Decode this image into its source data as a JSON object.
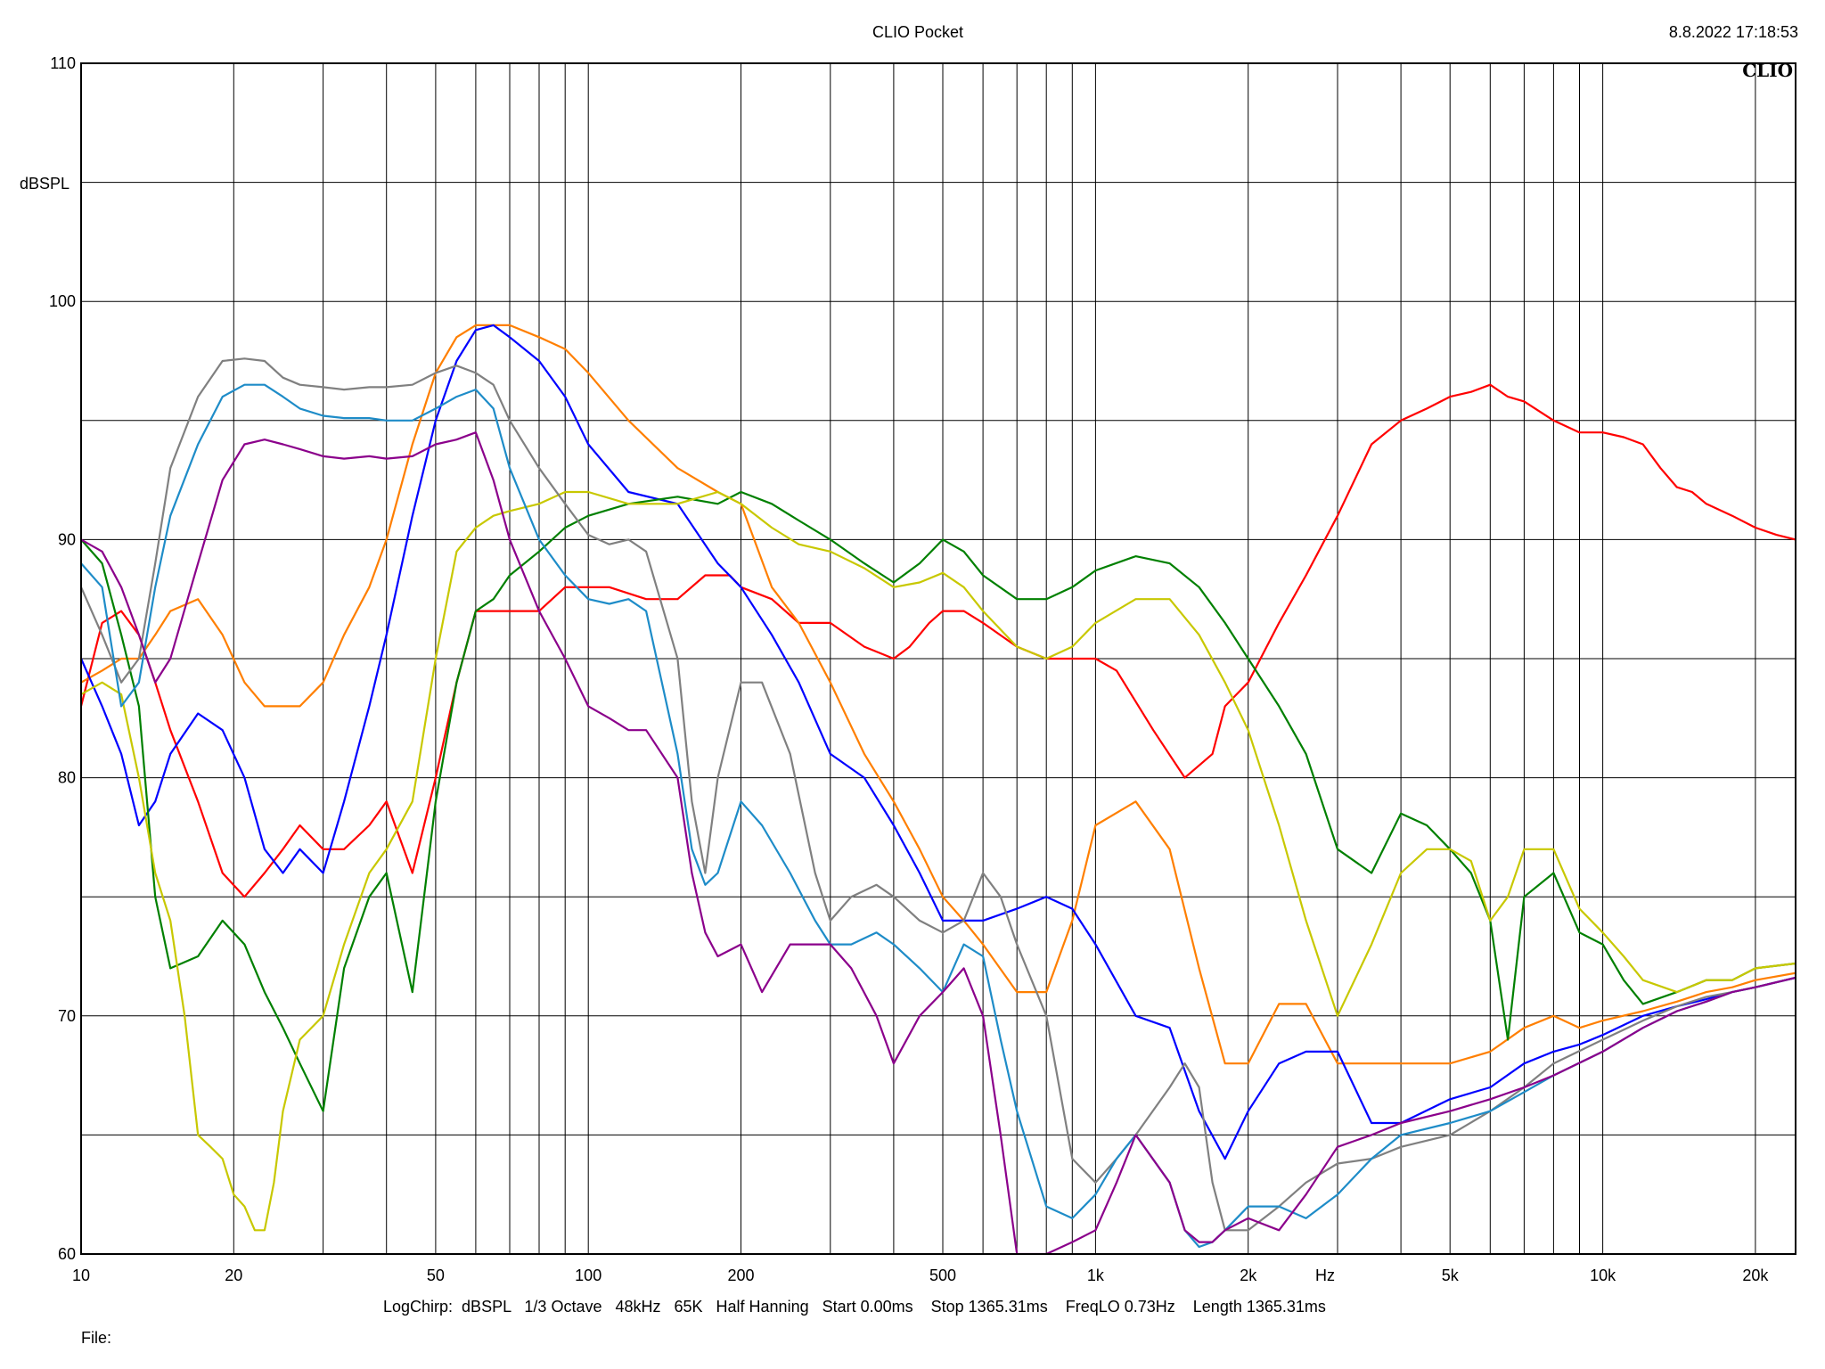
{
  "header": {
    "title": "CLIO Pocket",
    "timestamp": "8.8.2022 17:18:53",
    "brand": "CLIO"
  },
  "footer": {
    "settings": "LogChirp:  dBSPL   1/3 Octave   48kHz   65K   Half Hanning   Start 0.00ms    Stop 1365.31ms    FreqLO 0.73Hz    Length 1365.31ms",
    "file_label": "File:"
  },
  "chart_data": {
    "type": "line",
    "title": "",
    "xlabel": "Hz",
    "ylabel": "dBSPL",
    "xscale": "log",
    "xlim": [
      10,
      24000
    ],
    "ylim": [
      60,
      110
    ],
    "grid": true,
    "legend": "none",
    "x_ticks": [
      {
        "v": 10,
        "label": "10"
      },
      {
        "v": 20,
        "label": "20"
      },
      {
        "v": 50,
        "label": "50"
      },
      {
        "v": 100,
        "label": "100"
      },
      {
        "v": 200,
        "label": "200"
      },
      {
        "v": 500,
        "label": "500"
      },
      {
        "v": 1000,
        "label": "1k"
      },
      {
        "v": 2000,
        "label": "2k"
      },
      {
        "v": 5000,
        "label": "5k"
      },
      {
        "v": 10000,
        "label": "10k"
      },
      {
        "v": 20000,
        "label": "20k"
      }
    ],
    "y_ticks": [
      {
        "v": 60,
        "label": "60"
      },
      {
        "v": 70,
        "label": "70"
      },
      {
        "v": 80,
        "label": "80"
      },
      {
        "v": 90,
        "label": "90"
      },
      {
        "v": 100,
        "label": "100"
      },
      {
        "v": 110,
        "label": "110"
      }
    ],
    "series": [
      {
        "color": "#ff0000",
        "x": [
          10,
          11,
          12,
          13,
          14,
          15,
          17,
          19,
          21,
          23,
          25,
          27,
          30,
          33,
          37,
          40,
          45,
          50,
          55,
          60,
          65,
          70,
          80,
          90,
          100,
          110,
          130,
          150,
          170,
          190,
          200,
          230,
          260,
          300,
          350,
          400,
          430,
          470,
          500,
          550,
          600,
          700,
          800,
          900,
          1000,
          1100,
          1300,
          1500,
          1700,
          1800,
          2000,
          2300,
          2600,
          3000,
          3500,
          4000,
          4500,
          5000,
          5500,
          6000,
          6500,
          7000,
          8000,
          9000,
          10000,
          11000,
          12000,
          13000,
          14000,
          15000,
          16000,
          18000,
          20000,
          22000,
          24000
        ],
        "y": [
          83,
          86.5,
          87,
          86,
          84,
          82,
          79,
          76,
          75,
          76,
          77,
          78,
          77,
          77,
          78,
          79,
          76,
          80,
          84,
          87,
          87,
          87,
          87,
          88,
          88,
          88,
          87.5,
          87.5,
          88.5,
          88.5,
          88,
          87.5,
          86.5,
          86.5,
          85.5,
          85,
          85.5,
          86.5,
          87,
          87,
          86.5,
          85.5,
          85,
          85,
          85,
          84.5,
          82,
          80,
          81,
          83,
          84,
          86.5,
          88.5,
          91,
          94,
          95,
          95.5,
          96,
          96.2,
          96.5,
          96,
          95.8,
          95,
          94.5,
          94.5,
          94.3,
          94,
          93,
          92.2,
          92,
          91.5,
          91,
          90.5,
          90.2,
          90
        ]
      },
      {
        "color": "#ff7f00",
        "x": [
          10,
          11,
          12,
          13,
          14,
          15,
          17,
          19,
          21,
          23,
          25,
          27,
          30,
          33,
          37,
          40,
          45,
          50,
          55,
          60,
          65,
          70,
          80,
          90,
          100,
          120,
          150,
          180,
          200,
          230,
          260,
          300,
          350,
          400,
          450,
          500,
          550,
          600,
          700,
          800,
          900,
          1000,
          1200,
          1400,
          1600,
          1800,
          2000,
          2300,
          2600,
          3000,
          3500,
          4000,
          5000,
          6000,
          7000,
          8000,
          9000,
          10000,
          12000,
          14000,
          16000,
          18000,
          20000,
          24000
        ],
        "y": [
          84,
          84.5,
          85,
          85,
          86,
          87,
          87.5,
          86,
          84,
          83,
          83,
          83,
          84,
          86,
          88,
          90,
          94,
          97,
          98.5,
          99,
          99,
          99,
          98.5,
          98,
          97,
          95,
          93,
          92,
          91.5,
          88,
          86.5,
          84,
          81,
          79,
          77,
          75,
          74,
          73,
          71,
          71,
          74,
          78,
          79,
          77,
          72,
          68,
          68,
          70.5,
          70.5,
          68,
          68,
          68,
          68,
          68.5,
          69.5,
          70,
          69.5,
          69.8,
          70.2,
          70.6,
          71,
          71.2,
          71.5,
          71.8
        ]
      },
      {
        "color": "#0000ff",
        "x": [
          10,
          11,
          12,
          13,
          14,
          15,
          17,
          19,
          21,
          23,
          25,
          27,
          30,
          33,
          37,
          40,
          45,
          50,
          55,
          60,
          65,
          70,
          80,
          90,
          100,
          120,
          150,
          180,
          200,
          230,
          260,
          300,
          350,
          400,
          450,
          500,
          550,
          600,
          700,
          800,
          900,
          1000,
          1200,
          1400,
          1600,
          1800,
          2000,
          2300,
          2600,
          3000,
          3500,
          4000,
          5000,
          6000,
          7000,
          8000,
          9000,
          10000,
          12000,
          14000,
          16000,
          18000,
          20000,
          24000
        ],
        "y": [
          85,
          83,
          81,
          78,
          79,
          81,
          82.7,
          82,
          80,
          77,
          76,
          77,
          76,
          79,
          83,
          86,
          91,
          95,
          97.5,
          98.8,
          99,
          98.5,
          97.5,
          96,
          94,
          92,
          91.5,
          89,
          88,
          86,
          84,
          81,
          80,
          78,
          76,
          74,
          74,
          74,
          74.5,
          75,
          74.5,
          73,
          70,
          69.5,
          66,
          64,
          66,
          68,
          68.5,
          68.5,
          65.5,
          65.5,
          66.5,
          67,
          68,
          68.5,
          68.8,
          69.2,
          70,
          70.4,
          70.7,
          71,
          71.2,
          71.6
        ]
      },
      {
        "color": "#008000",
        "x": [
          10,
          11,
          12,
          13,
          14,
          15,
          17,
          19,
          21,
          23,
          25,
          27,
          30,
          33,
          37,
          40,
          45,
          50,
          55,
          60,
          65,
          70,
          80,
          90,
          100,
          120,
          150,
          180,
          200,
          230,
          260,
          300,
          350,
          400,
          450,
          500,
          550,
          600,
          700,
          800,
          900,
          1000,
          1200,
          1400,
          1600,
          1800,
          2000,
          2300,
          2600,
          3000,
          3500,
          4000,
          4500,
          5000,
          5500,
          6000,
          6500,
          7000,
          8000,
          9000,
          10000,
          11000,
          12000,
          14000,
          16000,
          18000,
          20000,
          24000
        ],
        "y": [
          90,
          89,
          86,
          83,
          75,
          72,
          72.5,
          74,
          73,
          71,
          69.5,
          68,
          66,
          72,
          75,
          76,
          71,
          79,
          84,
          87,
          87.5,
          88.5,
          89.5,
          90.5,
          91,
          91.5,
          91.8,
          91.5,
          92,
          91.5,
          90.8,
          90,
          89,
          88.2,
          89,
          90,
          89.5,
          88.5,
          87.5,
          87.5,
          88,
          88.7,
          89.3,
          89,
          88,
          86.5,
          85,
          83,
          81,
          77,
          76,
          78.5,
          78,
          77,
          76,
          74,
          69,
          75,
          76,
          73.5,
          73,
          71.5,
          70.5,
          71,
          71.5,
          71.5,
          72,
          72.2
        ]
      },
      {
        "color": "#c8c800",
        "x": [
          10,
          11,
          12,
          13,
          14,
          15,
          16,
          17,
          18,
          19,
          20,
          21,
          22,
          23,
          24,
          25,
          27,
          30,
          33,
          37,
          40,
          45,
          50,
          55,
          60,
          65,
          70,
          80,
          90,
          100,
          120,
          150,
          180,
          200,
          230,
          260,
          300,
          350,
          400,
          450,
          500,
          550,
          600,
          700,
          800,
          900,
          1000,
          1200,
          1400,
          1600,
          1800,
          2000,
          2300,
          2600,
          3000,
          3500,
          4000,
          4500,
          5000,
          5500,
          6000,
          6500,
          7000,
          8000,
          9000,
          10000,
          11000,
          12000,
          14000,
          16000,
          18000,
          20000,
          24000
        ],
        "y": [
          83.5,
          84,
          83.5,
          80,
          76,
          74,
          70,
          65,
          64.5,
          64,
          62.5,
          62,
          61,
          61,
          63,
          66,
          69,
          70,
          73,
          76,
          77,
          79,
          85,
          89.5,
          90.5,
          91,
          91.2,
          91.5,
          92,
          92,
          91.5,
          91.5,
          92,
          91.5,
          90.5,
          89.8,
          89.5,
          88.8,
          88,
          88.2,
          88.6,
          88,
          87,
          85.5,
          85,
          85.5,
          86.5,
          87.5,
          87.5,
          86,
          84,
          82,
          78,
          74,
          70,
          73,
          76,
          77,
          77,
          76.5,
          74,
          75,
          77,
          77,
          74.5,
          73.5,
          72.5,
          71.5,
          71,
          71.5,
          71.5,
          72,
          72.2
        ]
      },
      {
        "color": "#808080",
        "x": [
          10,
          11,
          12,
          13,
          14,
          15,
          17,
          19,
          21,
          23,
          25,
          27,
          30,
          33,
          37,
          40,
          45,
          50,
          55,
          60,
          65,
          70,
          80,
          90,
          100,
          110,
          120,
          130,
          150,
          160,
          170,
          180,
          200,
          220,
          250,
          280,
          300,
          330,
          370,
          400,
          450,
          500,
          550,
          600,
          650,
          700,
          800,
          900,
          1000,
          1100,
          1200,
          1400,
          1500,
          1600,
          1700,
          1800,
          2000,
          2300,
          2600,
          3000,
          3500,
          4000,
          5000,
          6000,
          7000,
          8000,
          10000,
          12000,
          14000,
          16000,
          18000,
          20000,
          24000
        ],
        "y": [
          88,
          86,
          84,
          85,
          89,
          93,
          96,
          97.5,
          97.6,
          97.5,
          96.8,
          96.5,
          96.4,
          96.3,
          96.4,
          96.4,
          96.5,
          97,
          97.3,
          97,
          96.5,
          95,
          93,
          91.5,
          90.2,
          89.8,
          90,
          89.5,
          85,
          79,
          76,
          80,
          84,
          84,
          81,
          76,
          74,
          75,
          75.5,
          75,
          74,
          73.5,
          74,
          76,
          75,
          73,
          70,
          64,
          63,
          64,
          65,
          67,
          68,
          67,
          63,
          61,
          61,
          62,
          63,
          63.8,
          64,
          64.5,
          65,
          66,
          67,
          68,
          69,
          69.8,
          70.4,
          70.8,
          71,
          71.2,
          71.6
        ]
      },
      {
        "color": "#1e8cc8",
        "x": [
          10,
          11,
          12,
          13,
          14,
          15,
          17,
          19,
          21,
          23,
          25,
          27,
          30,
          33,
          37,
          40,
          45,
          50,
          55,
          60,
          65,
          70,
          80,
          90,
          100,
          110,
          120,
          130,
          150,
          160,
          170,
          180,
          200,
          220,
          250,
          280,
          300,
          330,
          370,
          400,
          450,
          500,
          550,
          600,
          650,
          700,
          800,
          900,
          1000,
          1100,
          1200,
          1400,
          1500,
          1600,
          1700,
          1800,
          2000,
          2300,
          2600,
          3000,
          3500,
          4000,
          5000,
          6000,
          7000,
          8000,
          10000,
          12000,
          14000,
          16000,
          18000,
          20000,
          24000
        ],
        "y": [
          89,
          88,
          83,
          84,
          88,
          91,
          94,
          96,
          96.5,
          96.5,
          96,
          95.5,
          95.2,
          95.1,
          95.1,
          95,
          95,
          95.5,
          96,
          96.3,
          95.5,
          93,
          90,
          88.5,
          87.5,
          87.3,
          87.5,
          87,
          81,
          77,
          75.5,
          76,
          79,
          78,
          76,
          74,
          73,
          73,
          73.5,
          73,
          72,
          71,
          73,
          72.5,
          69,
          66,
          62,
          61.5,
          62.5,
          64,
          65,
          63,
          61,
          60.3,
          60.5,
          61,
          62,
          62,
          61.5,
          62.5,
          64,
          65,
          65.5,
          66,
          66.8,
          67.5,
          68.5,
          69.5,
          70.2,
          70.6,
          71,
          71.2,
          71.6
        ]
      },
      {
        "color": "#8b008b",
        "x": [
          10,
          11,
          12,
          13,
          14,
          15,
          17,
          19,
          21,
          23,
          25,
          27,
          30,
          33,
          37,
          40,
          45,
          50,
          55,
          60,
          65,
          70,
          80,
          90,
          100,
          110,
          120,
          130,
          150,
          160,
          170,
          180,
          200,
          220,
          250,
          280,
          300,
          330,
          370,
          400,
          450,
          500,
          550,
          600,
          650,
          700,
          800,
          900,
          1000,
          1100,
          1200,
          1400,
          1500,
          1600,
          1700,
          1800,
          2000,
          2300,
          2600,
          3000,
          3500,
          4000,
          5000,
          6000,
          7000,
          8000,
          10000,
          12000,
          14000,
          16000,
          18000,
          20000,
          24000
        ],
        "y": [
          90,
          89.5,
          88,
          86,
          84,
          85,
          89,
          92.5,
          94,
          94.2,
          94,
          93.8,
          93.5,
          93.4,
          93.5,
          93.4,
          93.5,
          94,
          94.2,
          94.5,
          92.5,
          90,
          87,
          85,
          83,
          82.5,
          82,
          82,
          80,
          76,
          73.5,
          72.5,
          73,
          71,
          73,
          73,
          73,
          72,
          70,
          68,
          70,
          71,
          72,
          70,
          65,
          60,
          60,
          60.5,
          61,
          63,
          65,
          63,
          61,
          60.5,
          60.5,
          61,
          61.5,
          61,
          62.5,
          64.5,
          65,
          65.5,
          66,
          66.5,
          67,
          67.5,
          68.5,
          69.5,
          70.2,
          70.6,
          71,
          71.2,
          71.6
        ]
      }
    ]
  }
}
